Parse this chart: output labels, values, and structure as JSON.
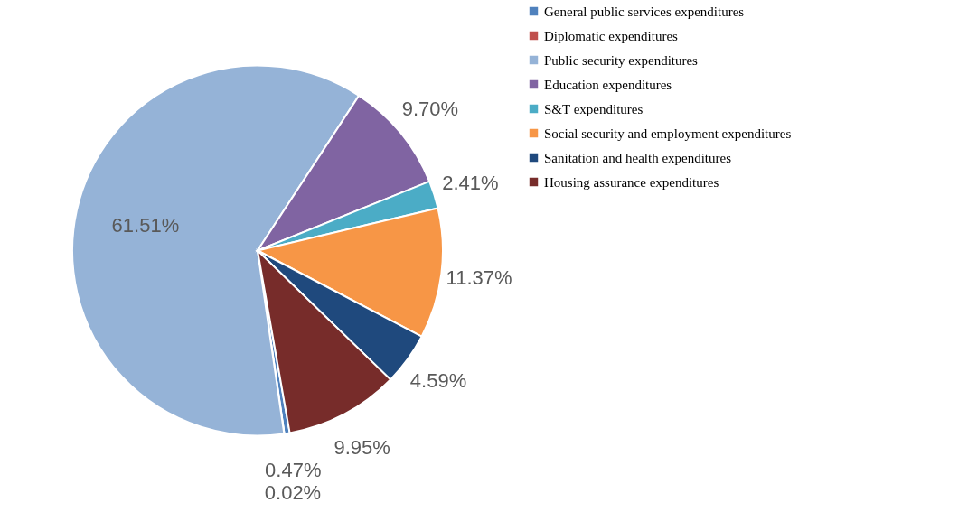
{
  "chart_data": {
    "type": "pie",
    "categories": [
      "General public services expenditures",
      "Diplomatic expenditures",
      "Public security expenditures",
      "Education expenditures",
      "S&T expenditures",
      "Social security and employment expenditures",
      "Sanitation and health expenditures",
      "Housing assurance expenditures"
    ],
    "values": [
      0.47,
      0.02,
      61.51,
      9.7,
      2.41,
      11.37,
      4.59,
      9.95
    ],
    "value_labels": [
      "0.47%",
      "0.02%",
      "61.51%",
      "9.70%",
      "2.41%",
      "11.37%",
      "4.59%",
      "9.95%"
    ],
    "colors": [
      "#4f81bd",
      "#c0504d",
      "#95b3d7",
      "#8064a2",
      "#4bacc6",
      "#f79646",
      "#1f497d",
      "#772c2a"
    ],
    "legend": "right"
  }
}
